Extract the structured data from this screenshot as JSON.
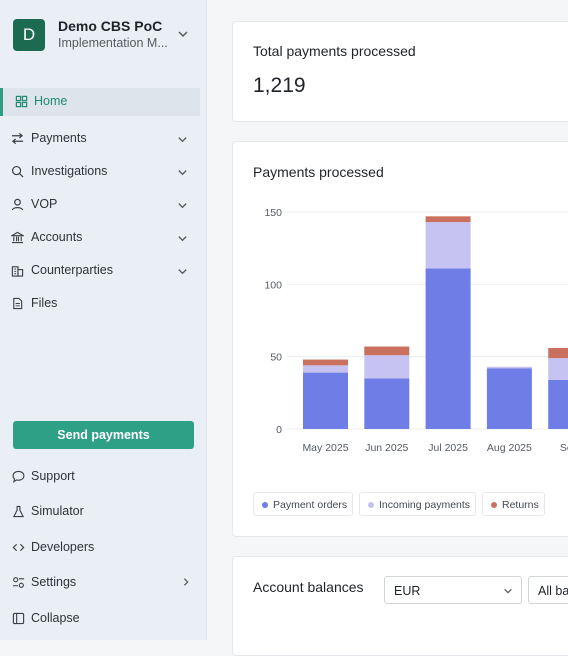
{
  "org": {
    "initial": "D",
    "name": "Demo CBS PoC",
    "subtitle": "Implementation M..."
  },
  "nav": {
    "home": "Home",
    "payments": "Payments",
    "investigations": "Investigations",
    "vop": "VOP",
    "accounts": "Accounts",
    "counterparties": "Counterparties",
    "files": "Files"
  },
  "actions": {
    "send_payments": "Send payments"
  },
  "footer": {
    "support": "Support",
    "simulator": "Simulator",
    "developers": "Developers",
    "settings": "Settings",
    "collapse": "Collapse"
  },
  "total_card": {
    "title": "Total payments processed",
    "value": "1,219"
  },
  "chart_card": {
    "title": "Payments processed"
  },
  "chart_data": {
    "type": "bar",
    "stacked": true,
    "categories": [
      "May 2025",
      "Jun 2025",
      "Jul 2025",
      "Aug 2025",
      "Sept"
    ],
    "series": [
      {
        "name": "Payment orders",
        "color": "#6f7ee6",
        "values": [
          39,
          35,
          111,
          42,
          34
        ]
      },
      {
        "name": "Incoming payments",
        "color": "#c6c3f3",
        "values": [
          5,
          16,
          32,
          1,
          15
        ]
      },
      {
        "name": "Returns",
        "color": "#c9705f",
        "values": [
          4,
          6,
          4,
          0,
          7
        ]
      }
    ],
    "ylim": [
      0,
      150
    ],
    "yticks": [
      "0",
      "50",
      "100",
      "150"
    ],
    "grid": true,
    "legend_position": "bottom-left"
  },
  "legend": {
    "payment_orders": "Payment orders",
    "incoming_payments": "Incoming payments",
    "returns": "Returns"
  },
  "balances_card": {
    "title": "Account balances",
    "currency": "EUR",
    "account_filter": "All ba"
  }
}
